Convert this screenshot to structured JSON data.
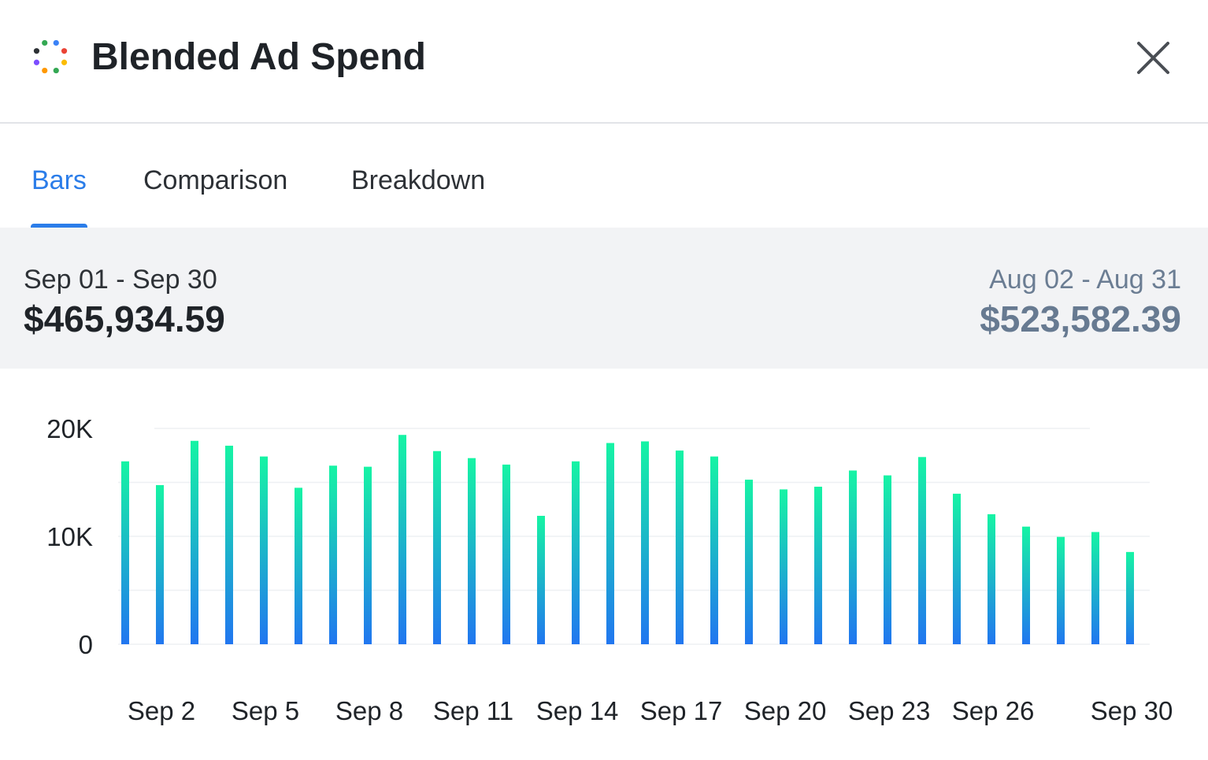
{
  "header": {
    "title": "Blended Ad Spend",
    "logo_icon": "dots-circle-logo-icon",
    "close_icon": "close-icon",
    "logo_colors": [
      "#3a82f7",
      "#ea4335",
      "#fbbc04",
      "#34a853",
      "#ff9800",
      "#7c4dff",
      "#2d3136",
      "#34a853"
    ]
  },
  "tabs": [
    {
      "label": "Bars",
      "active": true
    },
    {
      "label": "Comparison",
      "active": false
    },
    {
      "label": "Breakdown",
      "active": false
    }
  ],
  "summary": {
    "current_range": "Sep 01 - Sep 30",
    "current_value": "$465,934.59",
    "previous_range": "Aug 02 - Aug 31",
    "previous_value": "$523,582.39"
  },
  "colors": {
    "accent": "#2b7de9",
    "bar_top": "#16f4a4",
    "bar_bottom": "#2176f0",
    "muted": "#677a91"
  },
  "chart_data": {
    "type": "bar",
    "x": [
      "Sep 1",
      "Sep 2",
      "Sep 3",
      "Sep 4",
      "Sep 5",
      "Sep 6",
      "Sep 7",
      "Sep 8",
      "Sep 9",
      "Sep 10",
      "Sep 11",
      "Sep 12",
      "Sep 13",
      "Sep 14",
      "Sep 15",
      "Sep 16",
      "Sep 17",
      "Sep 18",
      "Sep 19",
      "Sep 20",
      "Sep 21",
      "Sep 22",
      "Sep 23",
      "Sep 24",
      "Sep 25",
      "Sep 26",
      "Sep 27",
      "Sep 28",
      "Sep 29",
      "Sep 30"
    ],
    "values": [
      16950,
      14750,
      18850,
      18400,
      17400,
      14500,
      16550,
      16450,
      19400,
      17900,
      17250,
      16650,
      11900,
      16950,
      18650,
      18800,
      17950,
      17400,
      15250,
      14350,
      14600,
      16100,
      15650,
      17350,
      13950,
      12050,
      10900,
      9950,
      10400,
      8550
    ],
    "x_tick_labels": [
      "Sep 2",
      "Sep 5",
      "Sep 8",
      "Sep 11",
      "Sep 14",
      "Sep 17",
      "Sep 20",
      "Sep 23",
      "Sep 26",
      "Sep 30"
    ],
    "y_tick_labels": [
      "0",
      "10K",
      "20K"
    ],
    "ylim": [
      0,
      20000
    ],
    "grid": true,
    "legend": "none"
  }
}
